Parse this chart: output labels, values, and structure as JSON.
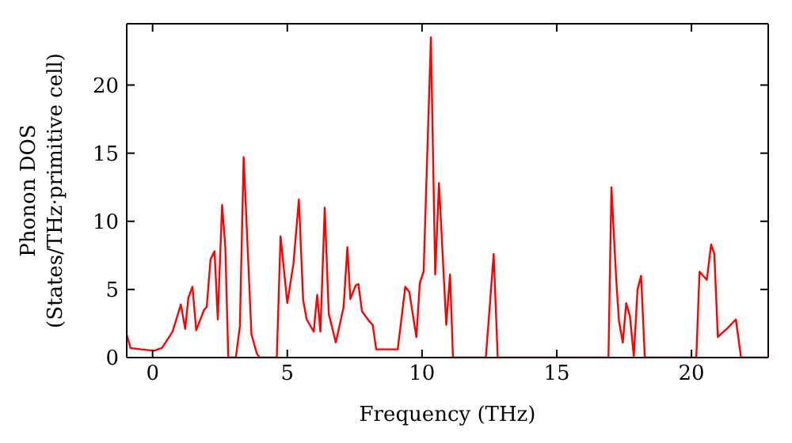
{
  "chart_data": {
    "type": "line",
    "xlabel": "Frequency (THz)",
    "ylabel": "Phonon DOS\n(States/THz·primitive cell)",
    "x": [
      -0.96,
      -0.82,
      -0.43,
      0.06,
      0.35,
      0.74,
      1.05,
      1.21,
      1.33,
      1.48,
      1.62,
      1.91,
      2.01,
      2.15,
      2.3,
      2.42,
      2.58,
      2.7,
      2.81,
      3.09,
      3.24,
      3.38,
      3.67,
      3.87,
      3.97,
      4.61,
      4.75,
      5.0,
      5.23,
      5.43,
      5.59,
      5.72,
      5.98,
      6.11,
      6.23,
      6.39,
      6.54,
      6.8,
      7.09,
      7.23,
      7.34,
      7.54,
      7.64,
      7.77,
      8.07,
      8.17,
      8.3,
      9.1,
      9.38,
      9.53,
      9.79,
      9.92,
      10.06,
      10.33,
      10.49,
      10.63,
      10.9,
      11.04,
      11.15,
      12.37,
      12.66,
      12.81,
      16.92,
      17.03,
      17.21,
      17.31,
      17.45,
      17.58,
      17.72,
      17.86,
      18.0,
      18.13,
      18.27,
      20.18,
      20.3,
      20.57,
      20.73,
      20.85,
      20.98,
      21.08,
      21.31,
      21.65,
      21.84,
      22.85
    ],
    "series": [
      {
        "color": "#ff0000",
        "values": [
          1.7,
          0.7,
          0.6,
          0.5,
          0.7,
          1.9,
          3.9,
          2.1,
          4.4,
          5.2,
          2.0,
          3.5,
          3.7,
          7.2,
          7.8,
          2.8,
          11.2,
          8.1,
          0,
          0,
          2.3,
          14.7,
          1.7,
          0.3,
          0,
          0,
          8.9,
          4.0,
          6.9,
          11.6,
          4.2,
          2.8,
          1.9,
          4.6,
          1.9,
          11.0,
          3.2,
          1.1,
          3.7,
          8.1,
          4.3,
          5.3,
          5.4,
          3.4,
          2.6,
          2.4,
          0.6,
          0.6,
          5.2,
          4.8,
          1.5,
          5.5,
          6.3,
          23.5,
          6.1,
          12.8,
          2.4,
          6.1,
          0,
          0,
          7.6,
          0,
          0,
          12.5,
          5.7,
          2.7,
          1.1,
          4.0,
          3.0,
          0.1,
          5.0,
          6.0,
          0,
          0,
          6.3,
          5.7,
          8.3,
          7.6,
          1.5,
          1.7,
          2.1,
          2.8,
          0,
          0
        ]
      }
    ],
    "xlim": [
      -0.96,
      22.85
    ],
    "ylim": [
      0,
      24.5
    ],
    "xticks": [
      0,
      5,
      10,
      15,
      20
    ],
    "yticks": [
      0,
      5,
      10,
      15,
      20
    ],
    "grid": false,
    "legend": false,
    "marker": "none",
    "line_style": "solid"
  }
}
